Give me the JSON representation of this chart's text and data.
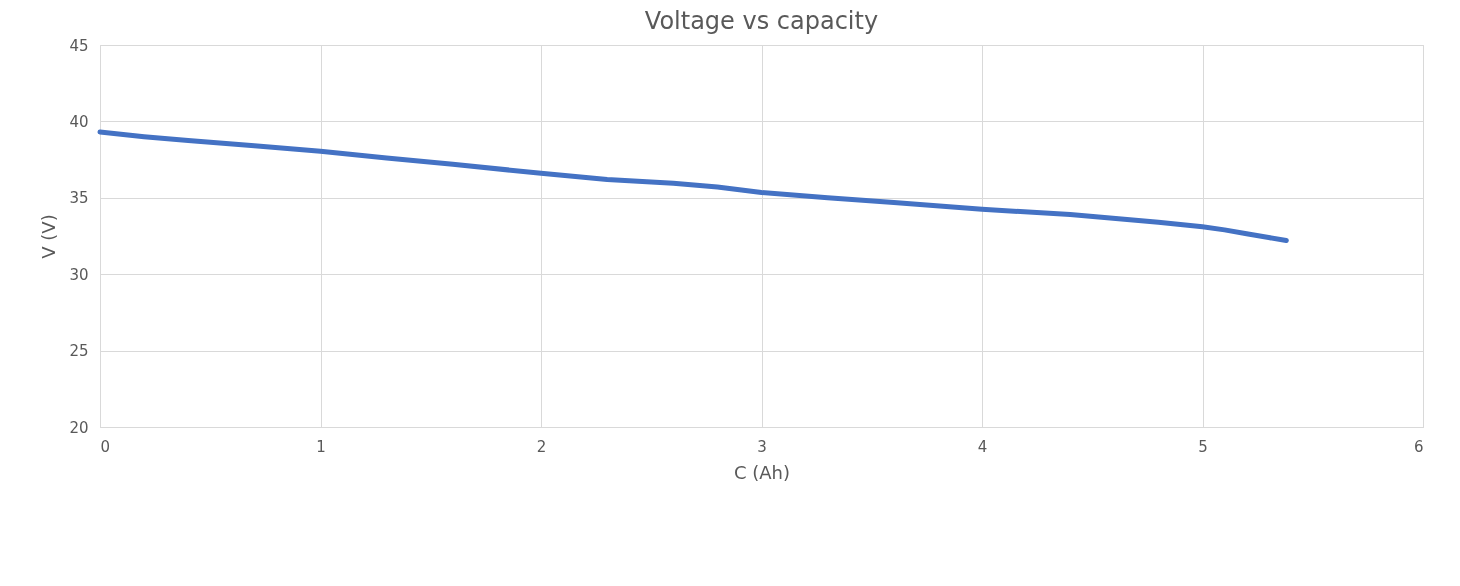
{
  "chart_data": {
    "type": "line",
    "title": "Voltage vs capacity",
    "xlabel": "C (Ah)",
    "ylabel": "V (V)",
    "x": [
      0,
      0.2,
      0.4,
      0.7,
      1,
      1.3,
      1.6,
      2,
      2.3,
      2.6,
      2.8,
      3,
      3.3,
      3.6,
      4,
      4.4,
      4.8,
      5,
      5.1,
      5.2,
      5.3,
      5.38
    ],
    "series": [
      {
        "color": "#4472c4",
        "values": [
          39.3,
          39.0,
          38.75,
          38.4,
          38.05,
          37.6,
          37.2,
          36.6,
          36.2,
          35.95,
          35.7,
          35.35,
          35.0,
          34.7,
          34.25,
          33.9,
          33.4,
          33.1,
          32.9,
          32.65,
          32.4,
          32.2
        ]
      }
    ],
    "xlim": [
      0,
      6
    ],
    "xticks": [
      0,
      1,
      2,
      3,
      4,
      5,
      6
    ],
    "ylim": [
      20,
      45
    ],
    "yticks": [
      20,
      25,
      30,
      35,
      40,
      45
    ],
    "grid": true,
    "marker": "none",
    "line_style": "solid"
  }
}
